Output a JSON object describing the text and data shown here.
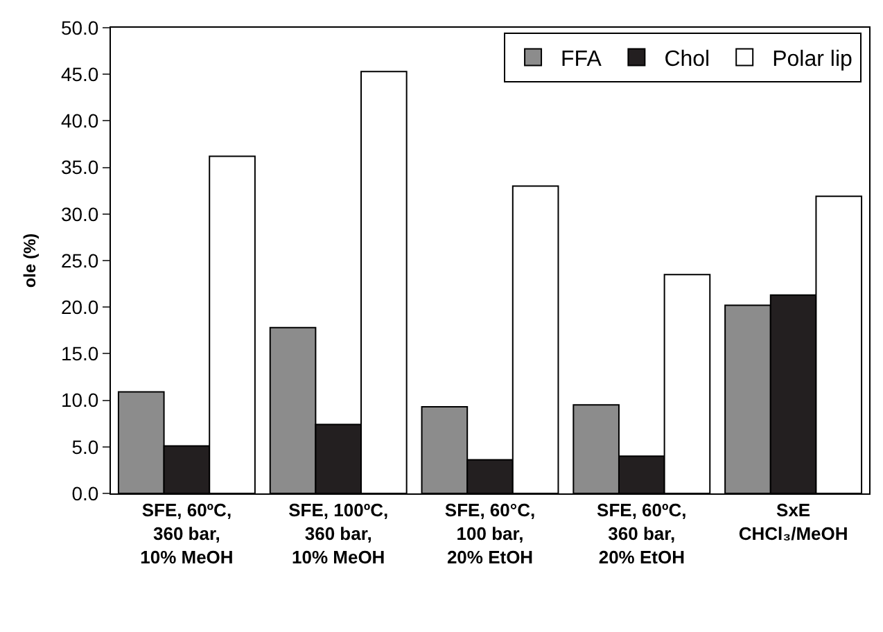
{
  "chart_data": {
    "type": "bar",
    "ylabel": "ole (%)",
    "categories": [
      "SFE, 60ºC,\n360 bar,\n10% MeOH",
      "SFE, 100ºC,\n360 bar,\n10% MeOH",
      "SFE, 60°C,\n100 bar,\n20% EtOH",
      "SFE, 60ºC,\n360 bar,\n20% EtOH",
      "SxE\nCHCl₃/MeOH"
    ],
    "series": [
      {
        "name": "FFA",
        "color": "#8c8c8c",
        "values": [
          10.9,
          17.8,
          9.3,
          9.5,
          20.2
        ]
      },
      {
        "name": "Chol",
        "color": "#231f20",
        "values": [
          5.1,
          7.4,
          3.6,
          4.0,
          21.3
        ]
      },
      {
        "name": "Polar lip",
        "color": "#ffffff",
        "values": [
          36.2,
          45.3,
          33.0,
          23.5,
          31.9
        ]
      }
    ],
    "ylim": [
      0,
      50
    ],
    "yticks": [
      {
        "value": 0,
        "label": "0.0"
      },
      {
        "value": 5,
        "label": "5.0"
      },
      {
        "value": 10,
        "label": "10.0"
      },
      {
        "value": 15,
        "label": "15.0"
      },
      {
        "value": 20,
        "label": "20.0"
      },
      {
        "value": 25,
        "label": "25.0"
      },
      {
        "value": 30,
        "label": "30.0"
      },
      {
        "value": 35,
        "label": "35.0"
      },
      {
        "value": 40,
        "label": "40.0"
      },
      {
        "value": 45,
        "label": "45.0"
      },
      {
        "value": 50,
        "label": "50.0"
      }
    ],
    "legend": "top right"
  }
}
